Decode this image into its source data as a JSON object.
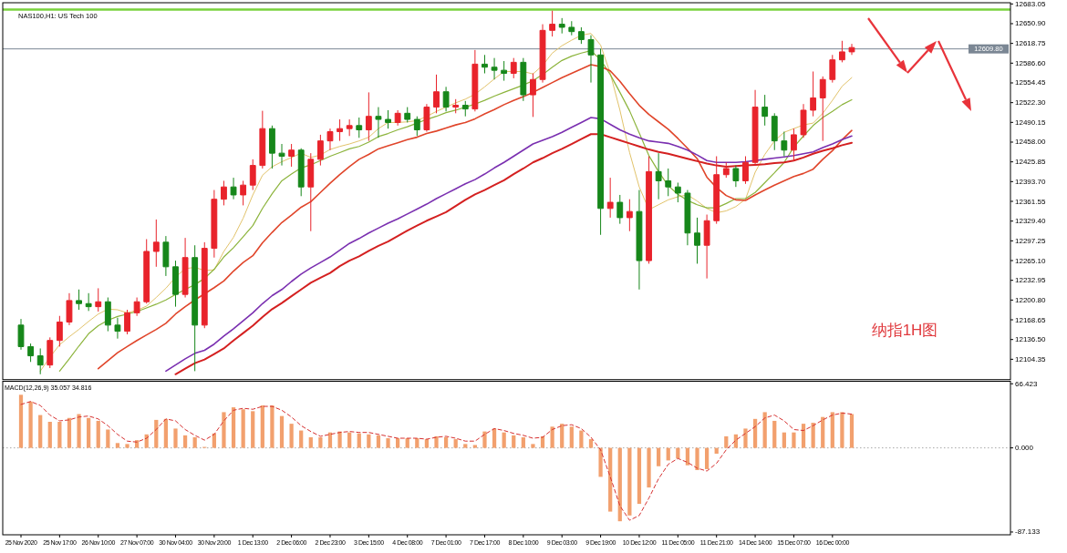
{
  "chart_data": [
    {
      "type": "candlestick",
      "title": "NAS100,H1: US Tech 100",
      "categories": [
        null,
        null,
        null,
        null,
        null,
        null,
        null,
        null,
        null,
        null,
        null,
        null,
        null,
        null,
        null,
        null,
        null,
        null,
        null,
        null,
        null,
        null,
        null,
        null,
        null,
        null,
        null,
        null,
        null,
        null,
        null,
        null,
        null,
        null,
        null,
        null,
        null,
        null,
        null,
        null,
        null,
        null,
        null,
        null,
        null,
        null,
        null,
        null,
        null,
        null,
        null,
        null,
        null,
        null,
        null,
        null,
        null,
        null,
        null,
        null,
        null,
        null,
        null,
        null,
        null,
        null,
        null,
        null,
        null,
        null,
        null,
        null,
        null,
        null,
        null,
        null,
        null,
        null,
        null,
        null,
        null,
        null,
        null,
        null,
        null,
        null,
        null
      ],
      "ylim": [
        12071.2,
        12685
      ],
      "yticks": [
        12683.05,
        {
          "value": 12650.9,
          "label": "12650.90"
        },
        12618.75,
        {
          "value": 12586.6,
          "label": "12586.60"
        },
        12554.45,
        {
          "value": 12522.3,
          "label": "12522.30"
        },
        12490.15,
        {
          "value": 12458,
          "label": "12458.00"
        },
        12425.85,
        {
          "value": 12393.7,
          "label": "12393.70"
        },
        12361.55,
        {
          "value": 12329.4,
          "label": "12329.40"
        },
        12297.25,
        {
          "value": 12265.1,
          "label": "12265.10"
        },
        12232.95,
        {
          "value": 12200.8,
          "label": "12200.80"
        },
        12168.65,
        {
          "value": 12136.5,
          "label": "12136.50"
        },
        12104.35
      ],
      "ohlc": [
        [
          12160,
          12170,
          12120,
          12125
        ],
        [
          12125,
          12130,
          12100,
          12110
        ],
        [
          12110,
          12122,
          12080,
          12095
        ],
        [
          12095,
          12140,
          12090,
          12135
        ],
        [
          12135,
          12175,
          12125,
          12165
        ],
        [
          12165,
          12212,
          12160,
          12200
        ],
        [
          12200,
          12218,
          12185,
          12195
        ],
        [
          12195,
          12212,
          12183,
          12190
        ],
        [
          12190,
          12220,
          12182,
          12198
        ],
        [
          12198,
          12205,
          12150,
          12160
        ],
        [
          12160,
          12172,
          12138,
          12150
        ],
        [
          12150,
          12185,
          12145,
          12180
        ],
        [
          12180,
          12205,
          12175,
          12198
        ],
        [
          12198,
          12300,
          12195,
          12280
        ],
        [
          12280,
          12332,
          12255,
          12295
        ],
        [
          12295,
          12305,
          12240,
          12255
        ],
        [
          12255,
          12265,
          12190,
          12210
        ],
        [
          12210,
          12302,
          12205,
          12270
        ],
        [
          12270,
          12290,
          12085,
          12160
        ],
        [
          12160,
          12295,
          12155,
          12285
        ],
        [
          12285,
          12380,
          12270,
          12365
        ],
        [
          12365,
          12395,
          12355,
          12385
        ],
        [
          12385,
          12400,
          12365,
          12372
        ],
        [
          12372,
          12395,
          12355,
          12388
        ],
        [
          12388,
          12430,
          12380,
          12420
        ],
        [
          12420,
          12509,
          12415,
          12480
        ],
        [
          12480,
          12485,
          12415,
          12440
        ],
        [
          12440,
          12455,
          12420,
          12435
        ],
        [
          12435,
          12455,
          12418,
          12445
        ],
        [
          12445,
          12448,
          12370,
          12385
        ],
        [
          12385,
          12440,
          12313,
          12430
        ],
        [
          12430,
          12470,
          12420,
          12460
        ],
        [
          12460,
          12480,
          12445,
          12475
        ],
        [
          12475,
          12495,
          12460,
          12480
        ],
        [
          12480,
          12495,
          12468,
          12485
        ],
        [
          12485,
          12498,
          12465,
          12478
        ],
        [
          12478,
          12539,
          12460,
          12500
        ],
        [
          12500,
          12515,
          12465,
          12495
        ],
        [
          12495,
          12510,
          12480,
          12490
        ],
        [
          12490,
          12510,
          12485,
          12505
        ],
        [
          12505,
          12515,
          12490,
          12495
        ],
        [
          12495,
          12500,
          12468,
          12478
        ],
        [
          12478,
          12520,
          12475,
          12515
        ],
        [
          12515,
          12568,
          12505,
          12540
        ],
        [
          12540,
          12548,
          12508,
          12515
        ],
        [
          12515,
          12528,
          12505,
          12518
        ],
        [
          12518,
          12525,
          12500,
          12512
        ],
        [
          12512,
          12608,
          12508,
          12585
        ],
        [
          12585,
          12600,
          12570,
          12580
        ],
        [
          12580,
          12595,
          12560,
          12575
        ],
        [
          12575,
          12590,
          12558,
          12570
        ],
        [
          12570,
          12595,
          12562,
          12588
        ],
        [
          12588,
          12595,
          12525,
          12535
        ],
        [
          12535,
          12570,
          12499,
          12560
        ],
        [
          12560,
          12650,
          12555,
          12640
        ],
        [
          12640,
          12672,
          12630,
          12650
        ],
        [
          12650,
          12660,
          12635,
          12645
        ],
        [
          12645,
          12655,
          12632,
          12638
        ],
        [
          12638,
          12645,
          12618,
          12625
        ],
        [
          12625,
          12632,
          12555,
          12600
        ],
        [
          12600,
          12610,
          12307,
          12350
        ],
        [
          12350,
          12400,
          12335,
          12360
        ],
        [
          12360,
          12372,
          12325,
          12335
        ],
        [
          12335,
          12365,
          12313,
          12345
        ],
        [
          12345,
          12380,
          12218,
          12265
        ],
        [
          12265,
          12435,
          12260,
          12410
        ],
        [
          12410,
          12440,
          12365,
          12395
        ],
        [
          12395,
          12415,
          12370,
          12385
        ],
        [
          12385,
          12392,
          12360,
          12375
        ],
        [
          12375,
          12380,
          12290,
          12310
        ],
        [
          12310,
          12335,
          12260,
          12290
        ],
        [
          12290,
          12340,
          12236,
          12330
        ],
        [
          12330,
          12435,
          12325,
          12405
        ],
        [
          12405,
          12425,
          12400,
          12415
        ],
        [
          12415,
          12420,
          12385,
          12395
        ],
        [
          12395,
          12435,
          12390,
          12425
        ],
        [
          12425,
          12543,
          12420,
          12515
        ],
        [
          12515,
          12535,
          12485,
          12500
        ],
        [
          12500,
          12505,
          12445,
          12460
        ],
        [
          12460,
          12475,
          12435,
          12445
        ],
        [
          12445,
          12480,
          12428,
          12470
        ],
        [
          12470,
          12520,
          12465,
          12510
        ],
        [
          12510,
          12573,
          12500,
          12530
        ],
        [
          12530,
          12565,
          12460,
          12560
        ],
        [
          12560,
          12600,
          12555,
          12592
        ],
        [
          12592,
          12623,
          12588,
          12605
        ],
        [
          12605,
          12618,
          12600,
          12612
        ]
      ],
      "colors": [
        "#16871a",
        "#16871a",
        "#16871a",
        "#e8232b",
        "#e8232b",
        "#e8232b",
        "#16871a",
        "#16871a",
        "#e8232b",
        "#16871a",
        "#16871a",
        "#e8232b",
        "#e8232b",
        "#e8232b",
        "#e8232b",
        "#16871a",
        "#16871a",
        "#e8232b",
        "#16871a",
        "#e8232b",
        "#e8232b",
        "#e8232b",
        "#16871a",
        "#e8232b",
        "#e8232b",
        "#e8232b",
        "#16871a",
        "#16871a",
        "#e8232b",
        "#16871a",
        "#e8232b",
        "#e8232b",
        "#e8232b",
        "#e8232b",
        "#e8232b",
        "#16871a",
        "#e8232b",
        "#16871a",
        "#16871a",
        "#e8232b",
        "#16871a",
        "#16871a",
        "#e8232b",
        "#e8232b",
        "#16871a",
        "#e8232b",
        "#16871a",
        "#e8232b",
        "#16871a",
        "#16871a",
        "#16871a",
        "#e8232b",
        "#16871a",
        "#e8232b",
        "#e8232b",
        "#e8232b",
        "#16871a",
        "#16871a",
        "#16871a",
        "#16871a",
        "#16871a",
        "#e8232b",
        "#16871a",
        "#e8232b",
        "#16871a",
        "#e8232b",
        "#16871a",
        "#16871a",
        "#16871a",
        "#16871a",
        "#16871a",
        "#e8232b",
        "#e8232b",
        "#e8232b",
        "#16871a",
        "#e8232b",
        "#e8232b",
        "#16871a",
        "#16871a",
        "#16871a",
        "#e8232b",
        "#e8232b",
        "#e8232b",
        "#e8232b",
        "#e8232b",
        "#e8232b",
        "#e8232b"
      ],
      "series": [
        {
          "type": "line",
          "color": "#e2c36b",
          "values": [
            null,
            null,
            12085,
            12108,
            12128,
            12141,
            12153,
            12166,
            12178,
            12186,
            12185,
            12180,
            12184,
            12191,
            12205,
            12220,
            12238,
            12252,
            12254,
            12249,
            12250,
            12280,
            12303,
            12334,
            12372,
            12404,
            12418,
            12426,
            12433,
            12440,
            12433,
            12437,
            12446,
            12451,
            12455,
            12460,
            12466,
            12480,
            12490,
            12490,
            12491,
            12493,
            12500,
            12508,
            12515,
            12522,
            12528,
            12536,
            12548,
            12561,
            12573,
            12573,
            12573,
            12569,
            12583,
            12603,
            12615,
            12624,
            12632,
            12635,
            12616,
            12570,
            12510,
            12441,
            12385,
            12348,
            12356,
            12364,
            12369,
            12372,
            12362,
            12350,
            12343,
            12346,
            12353,
            12365,
            12409,
            12438,
            12460,
            12474,
            12480,
            12486,
            12489,
            12505,
            12526,
            12549,
            12563
          ]
        },
        {
          "type": "line",
          "color": "#8cb43c",
          "values": [
            null,
            null,
            null,
            null,
            12085,
            12105,
            12126,
            12146,
            12159,
            12168,
            12174,
            12178,
            12182,
            12188,
            12194,
            12201,
            12210,
            12218,
            12226,
            12236,
            12251,
            12271,
            12286,
            12304,
            12322,
            12350,
            12374,
            12395,
            12406,
            12416,
            12421,
            12428,
            12435,
            12441,
            12447,
            12451,
            12458,
            12467,
            12472,
            12478,
            12483,
            12489,
            12495,
            12500,
            12506,
            12510,
            12515,
            12520,
            12526,
            12533,
            12539,
            12545,
            12551,
            12558,
            12568,
            12580,
            12591,
            12598,
            12603,
            12607,
            12592,
            12568,
            12539,
            12509,
            12473,
            12436,
            12410,
            12387,
            12373,
            12363,
            12356,
            12351,
            12351,
            12358,
            12366,
            12366,
            12376,
            12392,
            12408,
            12425,
            12450,
            12468,
            12485,
            12498,
            12508,
            12519,
            12527
          ]
        },
        {
          "type": "line",
          "color": "#e0452a",
          "values": [
            null,
            null,
            null,
            null,
            null,
            null,
            null,
            null,
            12089,
            12102,
            12115,
            12125,
            12135,
            12144,
            12153,
            12163,
            12178,
            12190,
            12201,
            12211,
            12221,
            12232,
            12248,
            12262,
            12273,
            12294,
            12311,
            12327,
            12339,
            12352,
            12361,
            12376,
            12391,
            12405,
            12418,
            12430,
            12438,
            12447,
            12452,
            12457,
            12462,
            12466,
            12472,
            12476,
            12481,
            12486,
            12490,
            12496,
            12504,
            12511,
            12519,
            12526,
            12532,
            12539,
            12547,
            12555,
            12563,
            12570,
            12577,
            12584,
            12581,
            12574,
            12557,
            12537,
            12518,
            12503,
            12491,
            12479,
            12464,
            12448,
            12431,
            12401,
            12384,
            12371,
            12364,
            12363,
            12372,
            12380,
            12388,
            12395,
            12402,
            12407,
            12414,
            12430,
            12444,
            12462,
            12477
          ]
        },
        {
          "type": "line",
          "color": "#7a2fb0",
          "values": [
            null,
            null,
            null,
            null,
            null,
            null,
            null,
            null,
            null,
            null,
            null,
            null,
            null,
            null,
            null,
            12085,
            12095,
            12105,
            12114,
            12119,
            12129,
            12142,
            12154,
            12167,
            12180,
            12195,
            12208,
            12218,
            12231,
            12243,
            12253,
            12262,
            12271,
            12282,
            12293,
            12301,
            12310,
            12318,
            12326,
            12333,
            12341,
            12349,
            12357,
            12366,
            12374,
            12382,
            12390,
            12397,
            12406,
            12416,
            12425,
            12435,
            12445,
            12455,
            12461,
            12467,
            12474,
            12482,
            12490,
            12498,
            12496,
            12487,
            12478,
            12471,
            12465,
            12460,
            12458,
            12456,
            12451,
            12445,
            12437,
            12428,
            12425,
            12425,
            12425,
            12426,
            12428,
            12430,
            12432,
            12434,
            12436,
            12439,
            12442,
            12449,
            12455,
            12462,
            12468
          ]
        },
        {
          "type": "line",
          "color": "#d42020",
          "values": [
            null,
            null,
            null,
            null,
            null,
            null,
            null,
            null,
            null,
            null,
            null,
            null,
            null,
            null,
            null,
            null,
            12080,
            12089,
            12098,
            12104,
            12113,
            12122,
            12135,
            12147,
            12159,
            12173,
            12186,
            12196,
            12207,
            12218,
            12229,
            12237,
            12245,
            12256,
            12265,
            12272,
            12281,
            12289,
            12296,
            12305,
            12314,
            12322,
            12330,
            12337,
            12344,
            12354,
            12364,
            12373,
            12380,
            12388,
            12396,
            12406,
            12415,
            12425,
            12432,
            12440,
            12447,
            12455,
            12463,
            12471,
            12471,
            12466,
            12461,
            12456,
            12451,
            12446,
            12442,
            12439,
            12435,
            12431,
            12427,
            12423,
            12420,
            12418,
            12419,
            12420,
            12421,
            12422,
            12424,
            12425,
            12428,
            12433,
            12439,
            12444,
            12448,
            12453,
            12457
          ]
        }
      ],
      "ref_lines": [
        {
          "axis": "y",
          "value": 12674,
          "color": "#78d23c"
        },
        {
          "axis": "y",
          "value": 12609.8,
          "label": "12609.80",
          "color": "#7b8794"
        }
      ],
      "annotations": [
        "纳指1H图"
      ]
    },
    {
      "type": "bar",
      "title": "MACD(12,26,9) 35.057 34.816",
      "categories": [
        "25 Nov 2020",
        null,
        null,
        null,
        "25 Nov 17:00",
        null,
        null,
        null,
        "26 Nov 10:00",
        null,
        null,
        null,
        "27 Nov 07:00",
        null,
        null,
        null,
        "30 Nov 04:00",
        null,
        null,
        null,
        "30 Nov 20:00",
        null,
        null,
        null,
        "1 Dec 13:00",
        null,
        null,
        null,
        "2 Dec 06:00",
        null,
        null,
        null,
        "2 Dec 23:00",
        null,
        null,
        null,
        "3 Dec 15:00",
        null,
        null,
        null,
        "4 Dec 08:00",
        null,
        null,
        null,
        "7 Dec 01:00",
        null,
        null,
        null,
        "7 Dec 17:00",
        null,
        null,
        null,
        "8 Dec 10:00",
        null,
        null,
        null,
        "9 Dec 03:00",
        null,
        null,
        null,
        "9 Dec 19:00",
        null,
        null,
        null,
        "10 Dec 12:00",
        null,
        null,
        null,
        "11 Dec 05:00",
        null,
        null,
        null,
        "11 Dec 21:00",
        null,
        null,
        null,
        "14 Dec 14:00",
        null,
        null,
        null,
        "15 Dec 07:00",
        null,
        null,
        null,
        "16 Dec 00:00",
        null,
        null
      ],
      "ylim": [
        -90,
        69
      ],
      "yticks": [
        66.423,
        {
          "value": 0,
          "label": "0.000"
        },
        -87.133
      ],
      "series": [
        {
          "type": "bar",
          "color": "#f2a06e",
          "values": [
            55,
            48,
            34,
            27,
            27,
            31,
            35,
            31,
            28,
            19,
            5,
            4,
            8,
            14,
            29,
            30,
            20,
            13,
            11,
            1,
            15,
            37,
            42,
            40,
            38,
            44,
            44,
            33,
            25,
            18,
            11,
            11,
            16,
            17,
            16,
            15,
            14,
            13,
            10,
            10,
            10,
            10,
            9,
            12,
            11,
            9,
            4,
            3,
            17,
            20,
            16,
            13,
            11,
            4,
            12,
            22,
            25,
            22,
            18,
            9,
            -30,
            -66,
            -76,
            -70,
            -58,
            -41,
            -19,
            -13,
            -11,
            -18,
            -23,
            -22,
            -6,
            12,
            14,
            20,
            30,
            37,
            28,
            16,
            16,
            25,
            26,
            32,
            37,
            37,
            35
          ]
        },
        {
          "type": "line",
          "color": "#d63030",
          "line_style": "dashed",
          "values": [
            45,
            48,
            44,
            34,
            28,
            29,
            32,
            33,
            30,
            23,
            14,
            7,
            6,
            10,
            19,
            30,
            28,
            19,
            13,
            8,
            14,
            28,
            39,
            41,
            40,
            43,
            43,
            39,
            32,
            23,
            17,
            12,
            14,
            16,
            17,
            16,
            16,
            14,
            12,
            10,
            10,
            10,
            9,
            11,
            12,
            10,
            7,
            7,
            14,
            20,
            18,
            15,
            13,
            10,
            11,
            19,
            23,
            24,
            20,
            11,
            -2,
            -30,
            -60,
            -75,
            -70,
            -52,
            -32,
            -17,
            -11,
            -15,
            -21,
            -24,
            -16,
            -2,
            8,
            15,
            22,
            31,
            34,
            28,
            19,
            18,
            23,
            29,
            34,
            36,
            35
          ]
        }
      ],
      "ref_lines": [
        {
          "axis": "y",
          "value": 0,
          "color": "#a8a8a8",
          "line_style": "dotted"
        }
      ]
    }
  ]
}
